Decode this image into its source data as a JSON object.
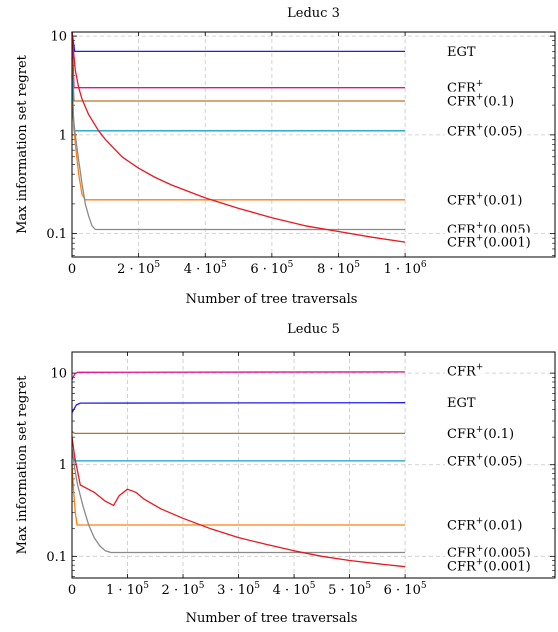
{
  "chart_data": [
    {
      "type": "line",
      "title": "Leduc 3",
      "xlabel": "Number of tree traversals",
      "ylabel": "Max information set regret",
      "xlim": [
        0,
        1450000
      ],
      "ylim": [
        0.058,
        11
      ],
      "yscale": "log",
      "grid": true,
      "x_ticks": [
        {
          "value": 0,
          "label": "0",
          "exp": ""
        },
        {
          "value": 200000,
          "label": "2 · 10",
          "exp": "5"
        },
        {
          "value": 400000,
          "label": "4 · 10",
          "exp": "5"
        },
        {
          "value": 600000,
          "label": "6 · 10",
          "exp": "5"
        },
        {
          "value": 800000,
          "label": "8 · 10",
          "exp": "5"
        },
        {
          "value": 1000000,
          "label": "1 · 10",
          "exp": "6"
        }
      ],
      "y_ticks": [
        {
          "value": 0.1,
          "label": "0.1"
        },
        {
          "value": 1,
          "label": "1"
        },
        {
          "value": 10,
          "label": "10"
        }
      ],
      "series": [
        {
          "name": "EGT",
          "base": "EGT",
          "param": "",
          "color": "#1f1fe6",
          "label_y": 7,
          "x": [
            0,
            8000,
            1000000
          ],
          "y": [
            11,
            7,
            7
          ]
        },
        {
          "name": "CFR+",
          "base": "CFR",
          "param": "",
          "color": "#e0138c",
          "label_y": 3,
          "x": [
            0,
            6000,
            1000000
          ],
          "y": [
            11,
            3,
            3
          ]
        },
        {
          "name": "CFR+(0.1)",
          "base": "CFR",
          "param": "(0.1)",
          "color": "#b8732e",
          "label_y": 2.2,
          "x": [
            0,
            6000,
            1000000
          ],
          "y": [
            6,
            2.2,
            2.2
          ]
        },
        {
          "name": "CFR+(0.05)",
          "base": "CFR",
          "param": "(0.05)",
          "color": "#17a3c8",
          "label_y": 1.1,
          "x": [
            0,
            6000,
            1000000
          ],
          "y": [
            4,
            1.1,
            1.1
          ]
        },
        {
          "name": "CFR+(0.01)",
          "base": "CFR",
          "param": "(0.01)",
          "color": "#ff7f0e",
          "label_y": 0.22,
          "x": [
            0,
            10000,
            20000,
            30000,
            40000,
            1000000
          ],
          "y": [
            2.2,
            0.8,
            0.4,
            0.25,
            0.22,
            0.22
          ]
        },
        {
          "name": "CFR+(0.005)",
          "base": "CFR",
          "param": "(0.005)",
          "color": "#8a8a8a",
          "label_y": 0.11,
          "x": [
            0,
            10000,
            20000,
            30000,
            40000,
            50000,
            60000,
            70000,
            1000000
          ],
          "y": [
            2,
            1.0,
            0.55,
            0.32,
            0.2,
            0.15,
            0.12,
            0.11,
            0.11
          ]
        },
        {
          "name": "CFR+(0.001)",
          "base": "CFR",
          "param": "(0.001)",
          "color": "#e8181e",
          "label_y": 0.082,
          "x": [
            0,
            3000,
            10000,
            20000,
            30000,
            50000,
            80000,
            100000,
            150000,
            200000,
            250000,
            300000,
            400000,
            500000,
            600000,
            700000,
            800000,
            900000,
            1000000
          ],
          "y": [
            11,
            8,
            4.5,
            3.0,
            2.3,
            1.6,
            1.1,
            0.9,
            0.6,
            0.46,
            0.37,
            0.31,
            0.23,
            0.18,
            0.145,
            0.12,
            0.105,
            0.092,
            0.082
          ]
        }
      ]
    },
    {
      "type": "line",
      "title": "Leduc 5",
      "xlabel": "Number of tree traversals",
      "ylabel": "Max information set regret",
      "xlim": [
        0,
        870000
      ],
      "ylim": [
        0.058,
        17
      ],
      "yscale": "log",
      "grid": true,
      "x_ticks": [
        {
          "value": 0,
          "label": "0",
          "exp": ""
        },
        {
          "value": 100000,
          "label": "1 · 10",
          "exp": "5"
        },
        {
          "value": 200000,
          "label": "2 · 10",
          "exp": "5"
        },
        {
          "value": 300000,
          "label": "3 · 10",
          "exp": "5"
        },
        {
          "value": 400000,
          "label": "4 · 10",
          "exp": "5"
        },
        {
          "value": 500000,
          "label": "5 · 10",
          "exp": "5"
        },
        {
          "value": 600000,
          "label": "6 · 10",
          "exp": "5"
        }
      ],
      "y_ticks": [
        {
          "value": 0.1,
          "label": "0.1"
        },
        {
          "value": 1,
          "label": "1"
        },
        {
          "value": 10,
          "label": "10"
        }
      ],
      "series": [
        {
          "name": "CFR+",
          "base": "CFR",
          "param": "",
          "color": "#e0138c",
          "label_y": 10.5,
          "x": [
            0,
            5000,
            10000,
            600000
          ],
          "y": [
            8.5,
            9.8,
            10.2,
            10.3
          ]
        },
        {
          "name": "EGT",
          "base": "EGT",
          "param": "",
          "color": "#1f1fe6",
          "label_y": 4.8,
          "x": [
            0,
            3000,
            8000,
            15000,
            600000
          ],
          "y": [
            3.7,
            4.0,
            4.5,
            4.7,
            4.75
          ]
        },
        {
          "name": "CFR+(0.1)",
          "base": "CFR",
          "param": "(0.1)",
          "color": "#b8732e",
          "label_y": 2.2,
          "x": [
            0,
            5000,
            600000
          ],
          "y": [
            2.3,
            2.2,
            2.2
          ]
        },
        {
          "name": "CFR+(0.05)",
          "base": "CFR",
          "param": "(0.05)",
          "color": "#17a3c8",
          "label_y": 1.1,
          "x": [
            0,
            5000,
            600000
          ],
          "y": [
            1.3,
            1.1,
            1.1
          ]
        },
        {
          "name": "CFR+(0.01)",
          "base": "CFR",
          "param": "(0.01)",
          "color": "#ff7f0e",
          "label_y": 0.22,
          "x": [
            0,
            3000,
            6000,
            9000,
            600000
          ],
          "y": [
            1.0,
            0.5,
            0.3,
            0.22,
            0.22
          ]
        },
        {
          "name": "CFR+(0.005)",
          "base": "CFR",
          "param": "(0.005)",
          "color": "#8a8a8a",
          "label_y": 0.11,
          "x": [
            0,
            5000,
            10000,
            20000,
            30000,
            40000,
            50000,
            60000,
            70000,
            600000
          ],
          "y": [
            1.5,
            0.9,
            0.6,
            0.35,
            0.22,
            0.16,
            0.13,
            0.115,
            0.11,
            0.11
          ]
        },
        {
          "name": "CFR+(0.001)",
          "base": "CFR",
          "param": "(0.001)",
          "color": "#e8181e",
          "label_y": 0.078,
          "x": [
            0,
            5000,
            15000,
            20000,
            40000,
            60000,
            75000,
            85000,
            100000,
            115000,
            130000,
            160000,
            200000,
            250000,
            300000,
            350000,
            400000,
            450000,
            500000,
            550000,
            600000
          ],
          "y": [
            2.0,
            1.2,
            0.6,
            0.58,
            0.5,
            0.4,
            0.36,
            0.46,
            0.54,
            0.5,
            0.42,
            0.33,
            0.26,
            0.2,
            0.16,
            0.135,
            0.115,
            0.1,
            0.09,
            0.083,
            0.077
          ]
        }
      ]
    }
  ]
}
